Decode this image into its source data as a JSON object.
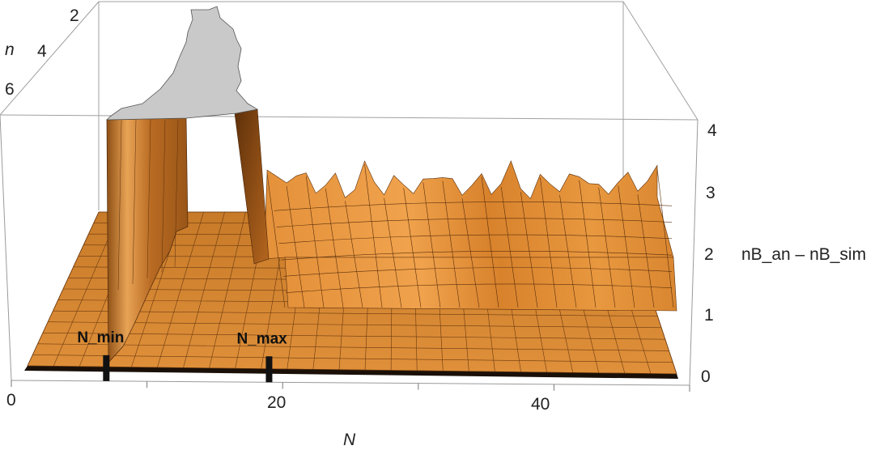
{
  "chart_data": {
    "type": "surface3d",
    "title": "",
    "x_axis": {
      "label": "N",
      "ticks": [
        "0",
        "20",
        "40"
      ],
      "range": [
        0,
        50
      ]
    },
    "y_axis": {
      "label": "n",
      "ticks": [
        "2",
        "4",
        "6"
      ],
      "range": [
        1,
        7
      ]
    },
    "z_axis": {
      "label": "nB_an – nB_sim",
      "ticks": [
        "0",
        "1",
        "2",
        "3",
        "4"
      ],
      "range": [
        0,
        4
      ]
    },
    "markers": [
      {
        "label": "N_min",
        "N": 7
      },
      {
        "label": "N_max",
        "N": 19
      }
    ],
    "surface_description": "difference surface: ~0 for N < 7, clipped above 4 for 7 ≤ N ≤ 18, about 1 to 3.5 for N ≥ 19",
    "regions": [
      {
        "N_from": 0,
        "N_to": 7,
        "value": 0
      },
      {
        "N_from": 7,
        "N_to": 18,
        "value": ">4 (clipped)"
      },
      {
        "N_from": 19,
        "N_to": 50,
        "value_min": 1.0,
        "value_max": 3.5
      }
    ],
    "colors": {
      "surface": "#d88a2e",
      "surface_dark": "#a8611c",
      "clipped_cap": "#c9c9c9",
      "box": "#9a9a9a"
    },
    "box": true,
    "grid": false
  }
}
